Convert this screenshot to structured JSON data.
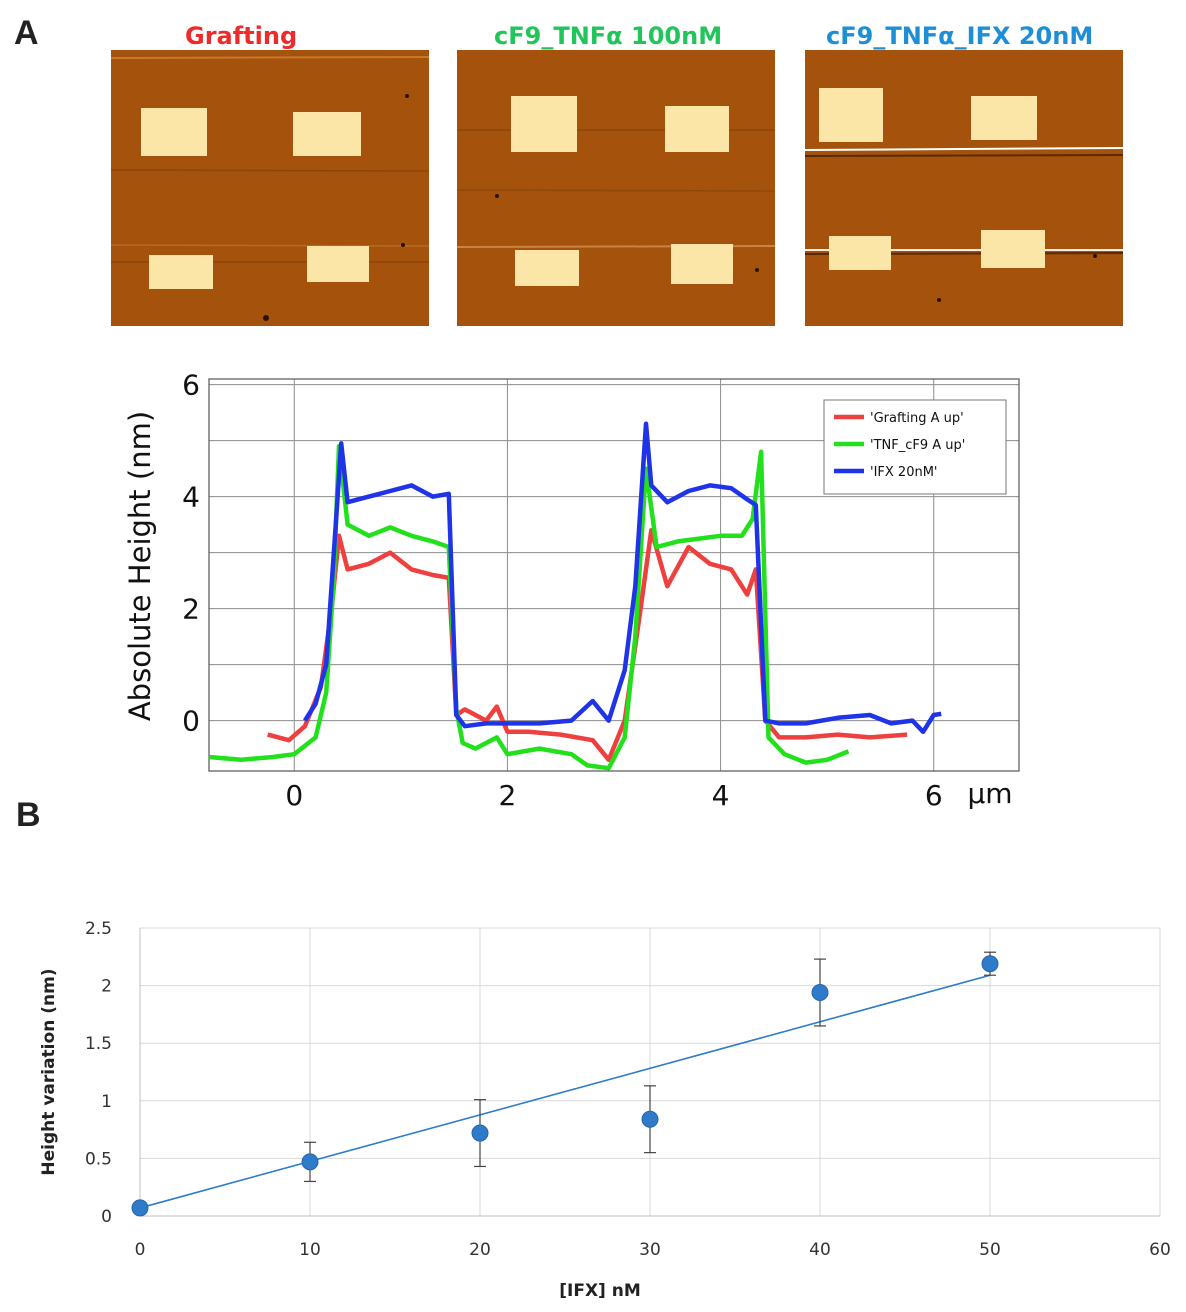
{
  "panels": {
    "a_label": "A",
    "b_label": "B"
  },
  "afm_images": [
    {
      "title": "Grafting",
      "color": "#ee2a2a"
    },
    {
      "title": "cF9_TNFα 100nM",
      "color": "#22c55a"
    },
    {
      "title": "cF9_TNFα_IFX 20nM",
      "color": "#1e8fd6"
    }
  ],
  "colors": {
    "afm_background": "#a4520c",
    "afm_pad": "#fbe6a8",
    "grafting": "#ef4040",
    "tnf": "#22e01c",
    "ifx": "#1f33e8",
    "panel_b_marker": "#2e7bc9"
  },
  "chart_data": [
    {
      "type": "line",
      "ylabel": "Absolute Height (nm)",
      "x_unit": "µm",
      "xlim": [
        -0.8,
        6.8
      ],
      "ylim": [
        -0.9,
        6.1
      ],
      "x_ticks": [
        0,
        2,
        4,
        6
      ],
      "y_ticks": [
        0,
        2,
        4,
        6
      ],
      "grid": true,
      "legend_position": "top-right",
      "series": [
        {
          "name": "'Grafting A up'",
          "color": "#ef4040",
          "x": [
            -0.25,
            -0.05,
            0.1,
            0.25,
            0.35,
            0.42,
            0.5,
            0.7,
            0.9,
            1.1,
            1.3,
            1.45,
            1.52,
            1.6,
            1.8,
            1.9,
            2.0,
            2.2,
            2.5,
            2.8,
            2.95,
            3.1,
            3.25,
            3.35,
            3.5,
            3.7,
            3.9,
            4.1,
            4.25,
            4.33,
            4.42,
            4.55,
            4.8,
            5.1,
            5.4,
            5.75
          ],
          "y": [
            -0.25,
            -0.35,
            -0.1,
            0.6,
            2.0,
            3.3,
            2.7,
            2.8,
            3.0,
            2.7,
            2.6,
            2.55,
            0.1,
            0.2,
            0.0,
            0.25,
            -0.2,
            -0.2,
            -0.25,
            -0.35,
            -0.7,
            0.0,
            2.0,
            3.4,
            2.4,
            3.1,
            2.8,
            2.7,
            2.25,
            2.7,
            0.0,
            -0.3,
            -0.3,
            -0.25,
            -0.3,
            -0.25
          ]
        },
        {
          "name": "'TNF_cF9 A up'",
          "color": "#22e01c",
          "x": [
            -0.8,
            -0.5,
            -0.2,
            0.0,
            0.2,
            0.3,
            0.37,
            0.42,
            0.5,
            0.7,
            0.9,
            1.1,
            1.3,
            1.45,
            1.52,
            1.58,
            1.7,
            1.9,
            2.0,
            2.3,
            2.6,
            2.75,
            2.95,
            3.1,
            3.2,
            3.3,
            3.4,
            3.6,
            3.8,
            4.0,
            4.2,
            4.3,
            4.38,
            4.45,
            4.6,
            4.8,
            5.0,
            5.2
          ],
          "y": [
            -0.65,
            -0.7,
            -0.65,
            -0.6,
            -0.3,
            0.5,
            2.5,
            4.9,
            3.5,
            3.3,
            3.45,
            3.3,
            3.2,
            3.1,
            0.2,
            -0.4,
            -0.5,
            -0.3,
            -0.6,
            -0.5,
            -0.6,
            -0.8,
            -0.85,
            -0.3,
            1.5,
            4.5,
            3.1,
            3.2,
            3.25,
            3.3,
            3.3,
            3.6,
            4.8,
            -0.3,
            -0.6,
            -0.75,
            -0.7,
            -0.55
          ]
        },
        {
          "name": "'IFX 20nM'",
          "color": "#1f33e8",
          "x": [
            0.1,
            0.2,
            0.3,
            0.4,
            0.44,
            0.5,
            0.7,
            0.9,
            1.1,
            1.3,
            1.45,
            1.52,
            1.6,
            1.8,
            2.0,
            2.3,
            2.6,
            2.8,
            2.95,
            3.1,
            3.2,
            3.3,
            3.35,
            3.5,
            3.7,
            3.9,
            4.1,
            4.25,
            4.33,
            4.42,
            4.55,
            4.8,
            5.1,
            5.4,
            5.6,
            5.8,
            5.9,
            6.0,
            6.07
          ],
          "y": [
            0.0,
            0.3,
            1.0,
            3.8,
            4.95,
            3.9,
            4.0,
            4.1,
            4.2,
            4.0,
            4.05,
            0.1,
            -0.1,
            -0.05,
            -0.05,
            -0.05,
            0.0,
            0.35,
            0.0,
            0.9,
            2.4,
            5.3,
            4.2,
            3.9,
            4.1,
            4.2,
            4.15,
            3.95,
            3.85,
            0.0,
            -0.05,
            -0.05,
            0.05,
            0.1,
            -0.05,
            0.0,
            -0.2,
            0.1,
            0.12
          ]
        }
      ]
    },
    {
      "type": "scatter",
      "xlabel": "[IFX] nM",
      "ylabel": "Height variation (nm)",
      "xlim": [
        0,
        60
      ],
      "ylim": [
        0,
        2.5
      ],
      "x_ticks": [
        0,
        10,
        20,
        30,
        40,
        50,
        60
      ],
      "y_ticks": [
        0,
        0.5,
        1,
        1.5,
        2,
        2.5
      ],
      "y_tick_labels": [
        "0",
        "0.5",
        "1",
        "1.5",
        "2",
        "2.5"
      ],
      "grid": true,
      "x": [
        0,
        10,
        20,
        30,
        40,
        50
      ],
      "y": [
        0.07,
        0.47,
        0.72,
        0.84,
        1.94,
        2.19
      ],
      "error": [
        0,
        0.17,
        0.29,
        0.29,
        0.29,
        0.1
      ],
      "trendline": {
        "x": [
          0,
          50
        ],
        "y": [
          0.07,
          2.09
        ]
      }
    }
  ]
}
